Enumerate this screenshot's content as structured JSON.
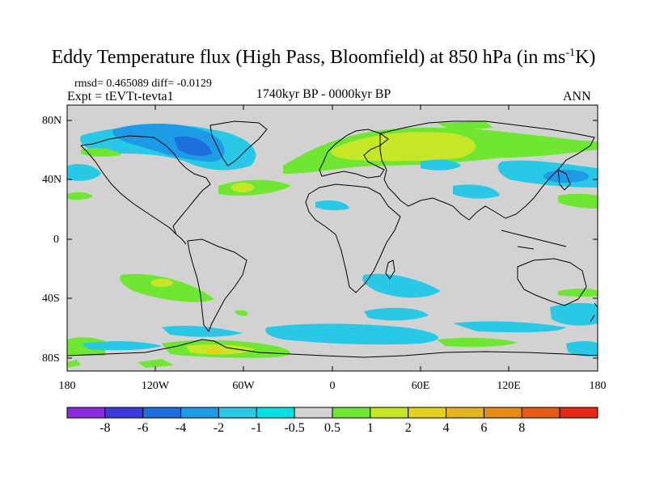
{
  "title_main": "Eddy Temperature flux (High Pass, Bloomfield) at 850 hPa (in ms",
  "title_sup": "-1",
  "title_end": "K)",
  "rmsd_line": "rmsd= 0.465089 diff= -0.0129",
  "expt_line": "Expt = tEVTt-tevta1",
  "period": "1740kyr BP - 0000kyr BP",
  "season": "ANN",
  "lat_labels": [
    "80N",
    "40N",
    "0",
    "40S",
    "80S"
  ],
  "lon_labels": [
    "180",
    "120W",
    "60W",
    "0",
    "60E",
    "120E",
    "180"
  ],
  "colorbar": {
    "colors": [
      "#8a2be2",
      "#3b3bdc",
      "#1e6edc",
      "#1e9be6",
      "#28c8e6",
      "#00e0e0",
      "#d2d2d2",
      "#6ee632",
      "#c8e628",
      "#e6d21e",
      "#e6b41e",
      "#e68c14",
      "#e65a14",
      "#e62814"
    ],
    "labels": [
      "-8",
      "-6",
      "-4",
      "-2",
      "-1",
      "-0.5",
      "0.5",
      "1",
      "2",
      "4",
      "6",
      "8"
    ]
  },
  "map_colors": {
    "ocean": "#d2d2d2",
    "coast": "#000000"
  }
}
